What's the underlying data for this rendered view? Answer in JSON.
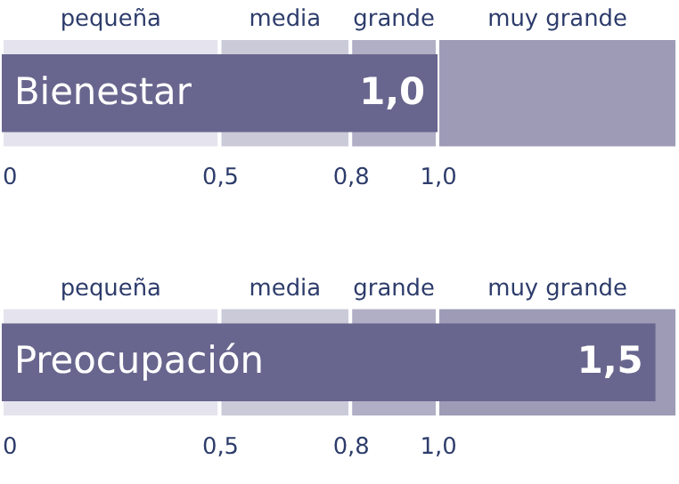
{
  "chart_data": [
    {
      "type": "bar",
      "orientation": "horizontal",
      "categories": [
        "Bienestar"
      ],
      "values": [
        1.0
      ],
      "value_labels": [
        "1,0"
      ],
      "color": "#68668e",
      "xlim": [
        0,
        1.55
      ],
      "xticks": [
        {
          "value": 0,
          "label": "0"
        },
        {
          "value": 0.5,
          "label": "0,5"
        },
        {
          "value": 0.8,
          "label": "0,8"
        },
        {
          "value": 1.0,
          "label": "1,0"
        }
      ],
      "bands": [
        {
          "axis": "x",
          "from": 0,
          "to": 0.5,
          "label": "pequeña",
          "color": "#e5e4ee"
        },
        {
          "axis": "x",
          "from": 0.5,
          "to": 0.8,
          "label": "media",
          "color": "#cbcad9"
        },
        {
          "axis": "x",
          "from": 0.8,
          "to": 1.0,
          "label": "grande",
          "color": "#b1afc6"
        },
        {
          "axis": "x",
          "from": 1.0,
          "to": 1.55,
          "label": "muy grande",
          "color": "#9d9bb6"
        }
      ]
    },
    {
      "type": "bar",
      "orientation": "horizontal",
      "categories": [
        "Preocupación"
      ],
      "values": [
        1.5
      ],
      "value_labels": [
        "1,5"
      ],
      "color": "#68668e",
      "xlim": [
        0,
        1.55
      ],
      "xticks": [
        {
          "value": 0,
          "label": "0"
        },
        {
          "value": 0.5,
          "label": "0,5"
        },
        {
          "value": 0.8,
          "label": "0,8"
        },
        {
          "value": 1.0,
          "label": "1,0"
        }
      ],
      "bands": [
        {
          "axis": "x",
          "from": 0,
          "to": 0.5,
          "label": "pequeña",
          "color": "#e5e4ee"
        },
        {
          "axis": "x",
          "from": 0.5,
          "to": 0.8,
          "label": "media",
          "color": "#cbcad9"
        },
        {
          "axis": "x",
          "from": 0.8,
          "to": 1.0,
          "label": "grande",
          "color": "#b1afc6"
        },
        {
          "axis": "x",
          "from": 1.0,
          "to": 1.55,
          "label": "muy grande",
          "color": "#9d9bb6"
        }
      ]
    }
  ]
}
